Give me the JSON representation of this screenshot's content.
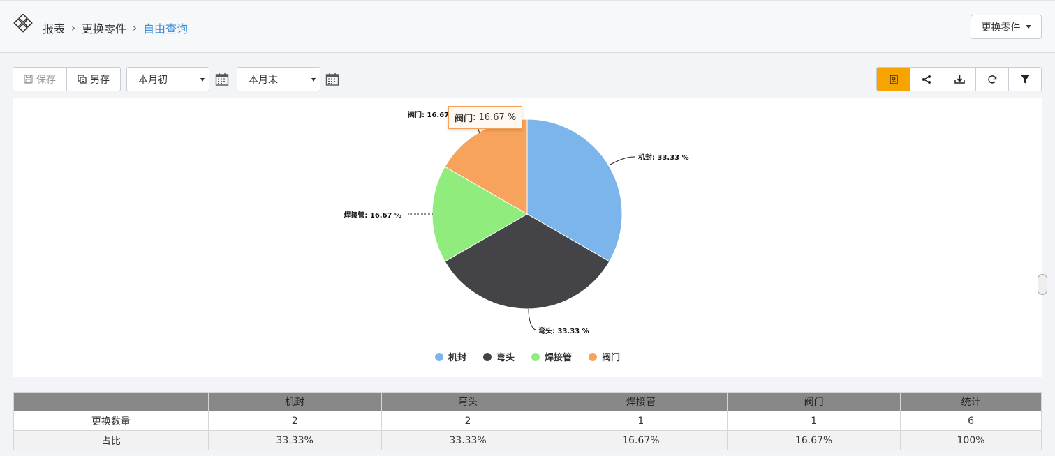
{
  "header": {
    "breadcrumbs": [
      "报表",
      "更换零件"
    ],
    "current": "自由查询",
    "right_button_label": "更换零件"
  },
  "toolbar": {
    "save_label": "保存",
    "save_as_label": "另存",
    "start_select_value": "本月初",
    "end_select_value": "本月末"
  },
  "right_tools": [
    "report-icon",
    "share-icon",
    "download-icon",
    "refresh-icon",
    "filter-icon"
  ],
  "chart_data": {
    "type": "pie",
    "categories": [
      "机封",
      "弯头",
      "焊接管",
      "阀门"
    ],
    "values": [
      33.33,
      33.33,
      16.67,
      16.67
    ],
    "colors": [
      "#7cb5ec",
      "#434348",
      "#90ed7d",
      "#f7a35c"
    ],
    "data_labels": [
      "机封: 33.33 %",
      "弯头: 33.33 %",
      "焊接管: 16.67 %",
      "阀门: 16.67"
    ],
    "legend_position": "bottom-center",
    "tooltip": {
      "name": "阀门",
      "value": ": 16.67 %"
    }
  },
  "table": {
    "headers": [
      "",
      "机封",
      "弯头",
      "焊接管",
      "阀门",
      "统计"
    ],
    "rows": [
      [
        "更换数量",
        "2",
        "2",
        "1",
        "1",
        "6"
      ],
      [
        "占比",
        "33.33%",
        "33.33%",
        "16.67%",
        "16.67%",
        "100%"
      ]
    ]
  }
}
